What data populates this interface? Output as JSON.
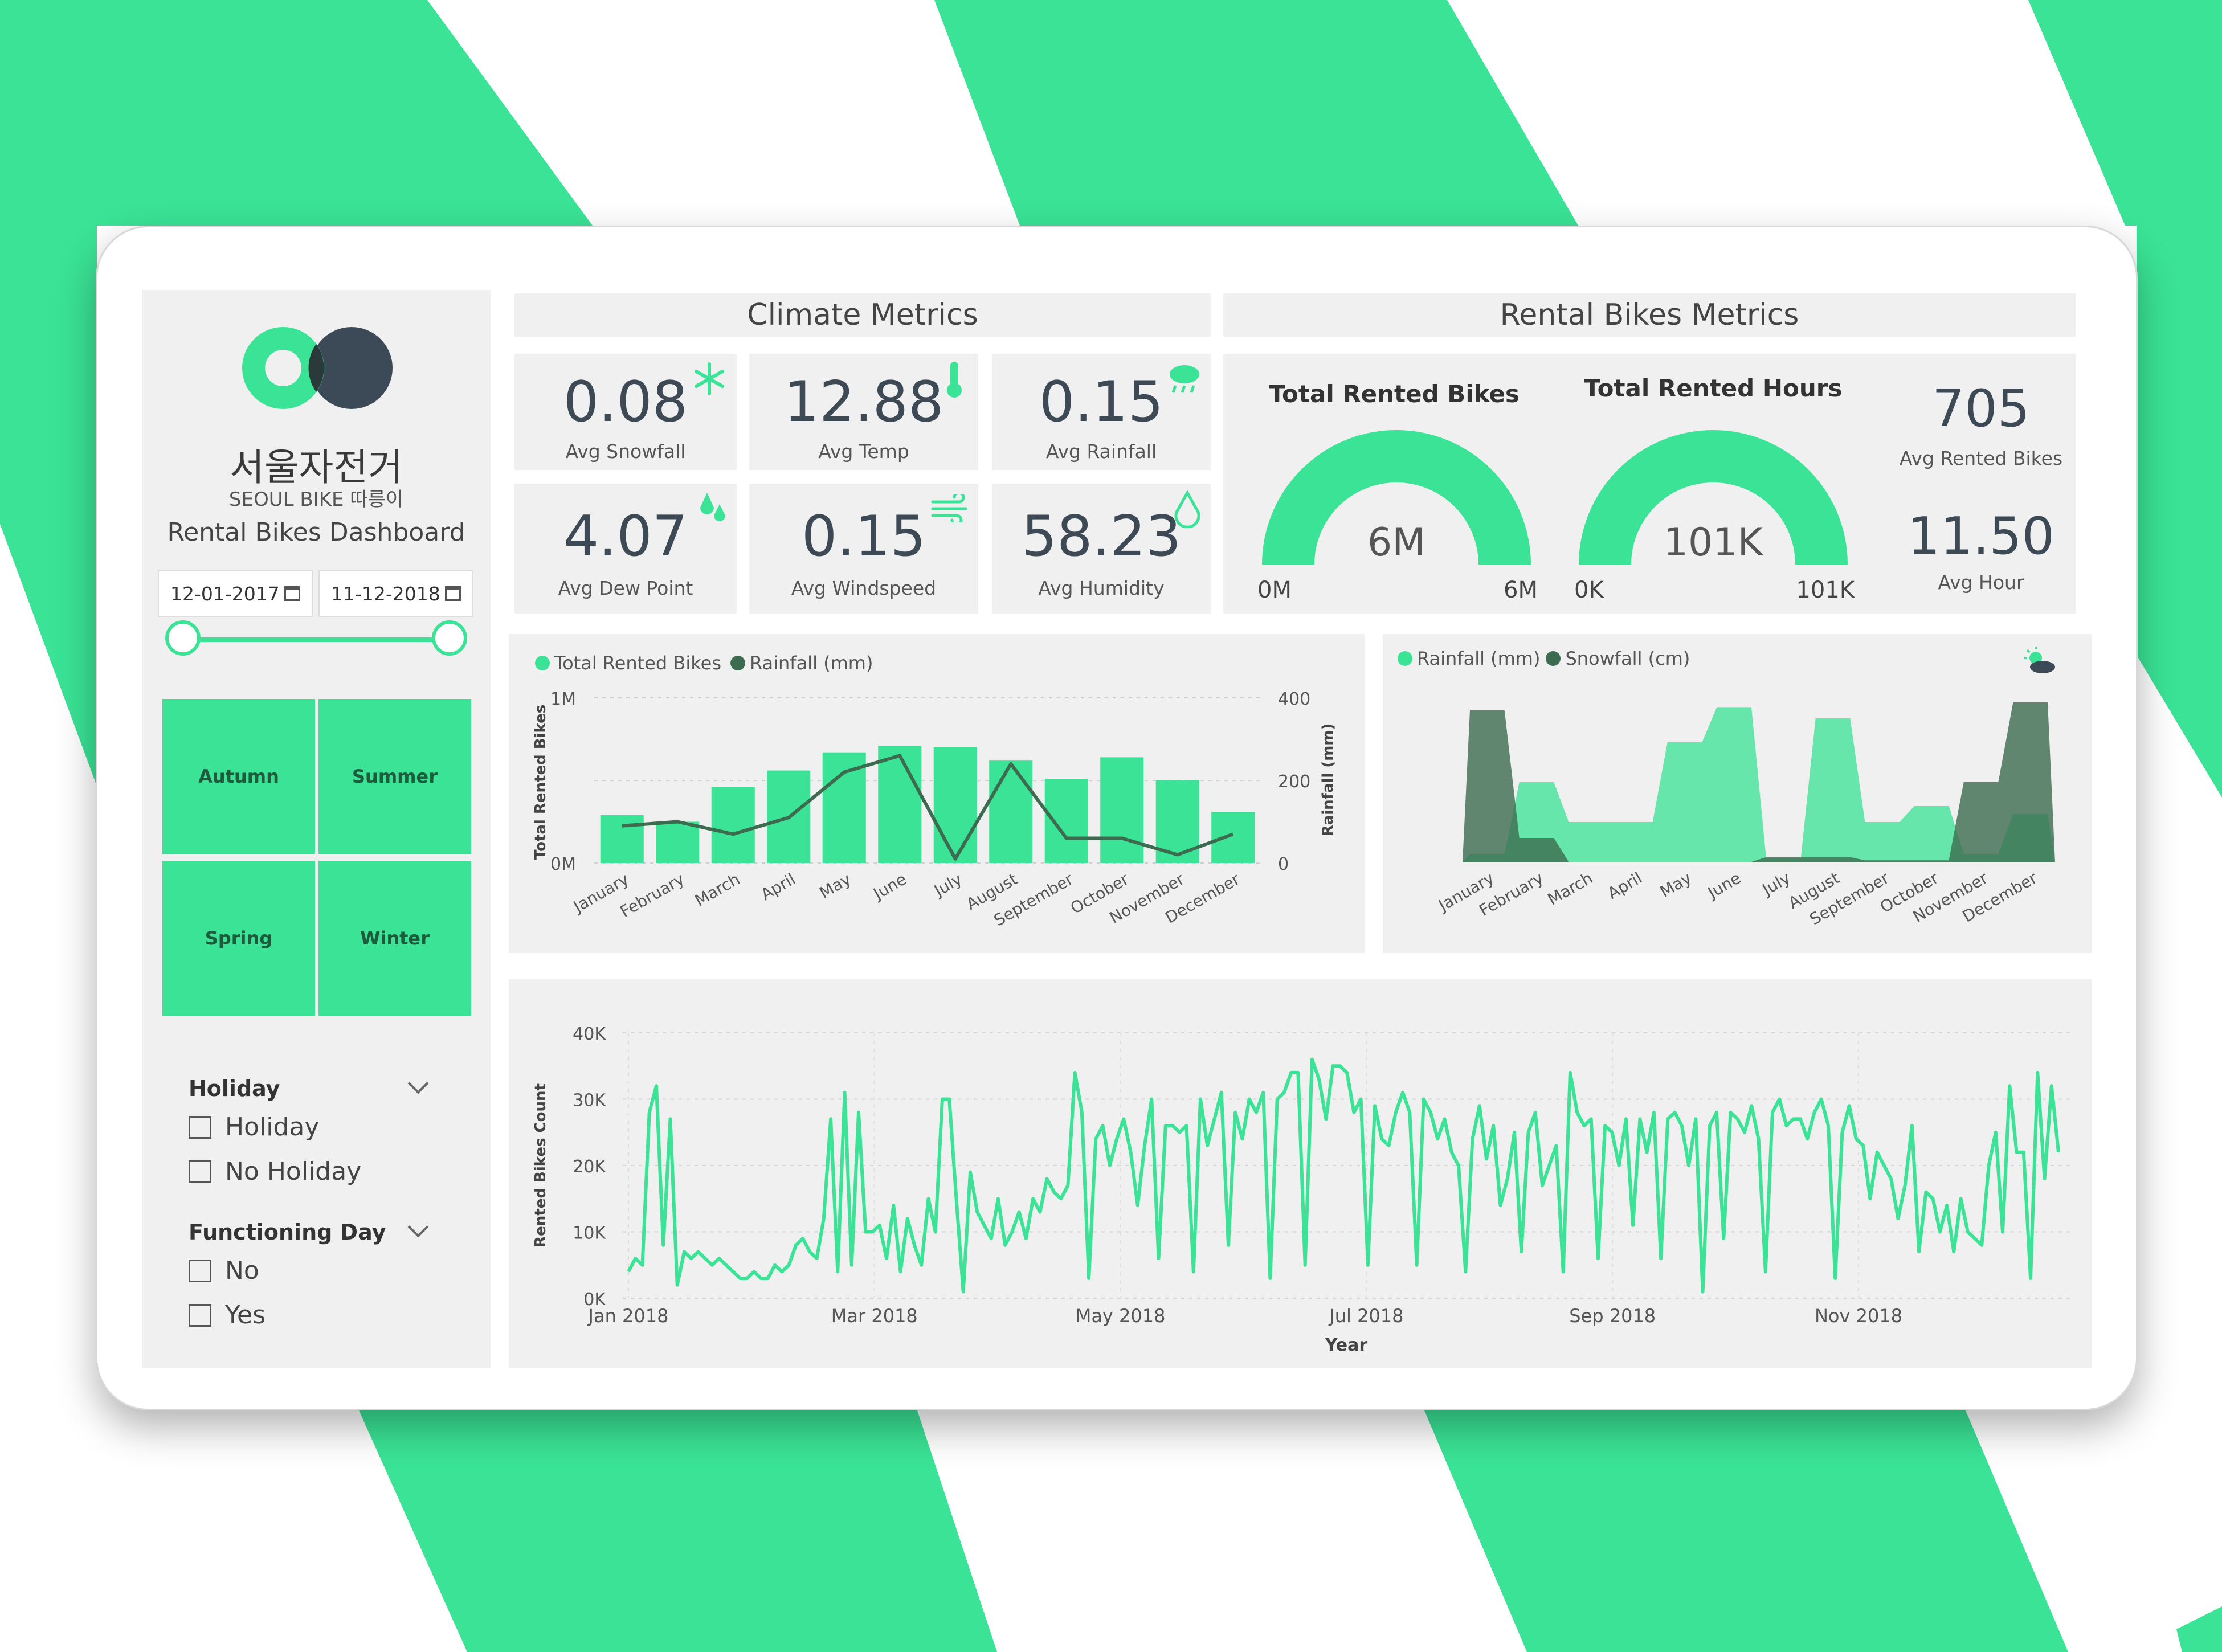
{
  "colors": {
    "accent": "#3ae396",
    "dark": "#3d5a4a",
    "panel": "#f0f0f0",
    "logo_dark": "#3c4a58"
  },
  "sidebar": {
    "korean_name": "서울자전거",
    "sub_name": "SEOUL BIKE 따릉이",
    "dashboard_title": "Rental Bikes Dashboard",
    "date_start": "12-01-2017",
    "date_end": "11-12-2018",
    "date_range_fraction": [
      0,
      1
    ],
    "seasons": [
      "Autumn",
      "Summer",
      "Spring",
      "Winter"
    ],
    "holiday": {
      "title": "Holiday",
      "options": [
        "Holiday",
        "No Holiday"
      ]
    },
    "functioning": {
      "title": "Functioning Day",
      "options": [
        "No",
        "Yes"
      ]
    }
  },
  "climate": {
    "title": "Climate Metrics",
    "kpis": [
      {
        "value": "0.08",
        "label": "Avg Snowfall",
        "icon": "snowflake-icon"
      },
      {
        "value": "12.88",
        "label": "Avg Temp",
        "icon": "thermometer-icon"
      },
      {
        "value": "0.15",
        "label": "Avg Rainfall",
        "icon": "rain-cloud-icon"
      },
      {
        "value": "4.07",
        "label": "Avg Dew Point",
        "icon": "dew-drops-icon"
      },
      {
        "value": "0.15",
        "label": "Avg Windspeed",
        "icon": "wind-icon"
      },
      {
        "value": "58.23",
        "label": "Avg Humidity",
        "icon": "humidity-drop-icon"
      }
    ]
  },
  "rental": {
    "title": "Rental Bikes Metrics",
    "gauges": [
      {
        "title": "Total Rented Bikes",
        "value": "6M",
        "min": "0M",
        "max": "6M",
        "fill": 1.0
      },
      {
        "title": "Total Rented Hours",
        "value": "101K",
        "min": "0K",
        "max": "101K",
        "fill": 1.0
      }
    ],
    "kpis": [
      {
        "value": "705",
        "label": "Avg Rented Bikes"
      },
      {
        "value": "11.50",
        "label": "Avg Hour"
      }
    ]
  },
  "chart_data": [
    {
      "type": "bar",
      "legend": [
        "Total Rented Bikes",
        "Rainfall (mm)"
      ],
      "categories": [
        "January",
        "February",
        "March",
        "April",
        "May",
        "June",
        "July",
        "August",
        "September",
        "October",
        "November",
        "December"
      ],
      "series": [
        {
          "name": "Total Rented Bikes",
          "type": "bar",
          "values": [
            290000,
            250000,
            460000,
            560000,
            670000,
            710000,
            700000,
            620000,
            510000,
            640000,
            500000,
            310000
          ]
        },
        {
          "name": "Rainfall (mm)",
          "type": "line",
          "values": [
            90,
            100,
            70,
            110,
            220,
            260,
            10,
            240,
            60,
            60,
            20,
            70
          ]
        }
      ],
      "ylabel": "Total Rented Bikes",
      "y2label": "Rainfall (mm)",
      "yticks": [
        "0M",
        "1M"
      ],
      "y2ticks": [
        "0",
        "200",
        "400"
      ],
      "ylim": [
        0,
        1000000
      ],
      "y2lim": [
        0,
        400
      ]
    },
    {
      "type": "area",
      "legend": [
        "Rainfall (mm)",
        "Snowfall (cm)"
      ],
      "icon": "weather-sun-cloud-icon",
      "categories": [
        "January",
        "February",
        "March",
        "April",
        "May",
        "June",
        "July",
        "August",
        "September",
        "October",
        "November",
        "December"
      ],
      "series": [
        {
          "name": "Rainfall (mm)",
          "values": [
            0.05,
            0.5,
            0.25,
            0.25,
            0.75,
            0.97,
            0.02,
            0.9,
            0.25,
            0.35,
            0.05,
            0.3
          ]
        },
        {
          "name": "Snowfall (cm)",
          "values": [
            0.95,
            0.15,
            0.0,
            0.0,
            0.0,
            0.0,
            0.03,
            0.03,
            0.01,
            0.01,
            0.5,
            1.0
          ]
        }
      ]
    },
    {
      "type": "line",
      "x_ticks": [
        "Jan 2018",
        "Mar 2018",
        "May 2018",
        "Jul 2018",
        "Sep 2018",
        "Nov 2018"
      ],
      "y_ticks": [
        "0K",
        "10K",
        "20K",
        "30K",
        "40K"
      ],
      "xlabel": "Year",
      "ylabel": "Rented Bikes Count",
      "ylim": [
        0,
        40000
      ],
      "series": [
        {
          "name": "Rented Bikes Count",
          "values": [
            4000,
            6000,
            5000,
            28000,
            32000,
            8000,
            27000,
            2000,
            7000,
            6000,
            7000,
            6000,
            5000,
            6000,
            5000,
            4000,
            3000,
            3000,
            4000,
            3000,
            3000,
            5000,
            4000,
            5000,
            8000,
            9000,
            7000,
            6000,
            12000,
            27000,
            4000,
            31000,
            5000,
            28000,
            10000,
            10000,
            11000,
            6000,
            14000,
            4000,
            12000,
            8000,
            5000,
            15000,
            10000,
            30000,
            30000,
            15000,
            1000,
            19000,
            13000,
            11000,
            9000,
            15000,
            8000,
            10000,
            13000,
            9000,
            15000,
            13000,
            18000,
            16000,
            15000,
            17000,
            34000,
            28000,
            3000,
            24000,
            26000,
            20000,
            24000,
            27000,
            22000,
            14000,
            23000,
            30000,
            6000,
            26000,
            26000,
            25000,
            26000,
            4000,
            30000,
            23000,
            27000,
            31000,
            8000,
            28000,
            24000,
            30000,
            28000,
            31000,
            3000,
            30000,
            31000,
            34000,
            34000,
            5000,
            36000,
            33000,
            27000,
            35000,
            35000,
            34000,
            28000,
            30000,
            5000,
            29000,
            24000,
            23000,
            28000,
            31000,
            28000,
            5000,
            30000,
            28000,
            24000,
            27000,
            22000,
            20000,
            4000,
            24000,
            29000,
            21000,
            26000,
            14000,
            18000,
            25000,
            7000,
            25000,
            28000,
            17000,
            20000,
            23000,
            4000,
            34000,
            28000,
            26000,
            27000,
            6000,
            26000,
            25000,
            20000,
            27000,
            11000,
            27000,
            22000,
            28000,
            6000,
            27000,
            28000,
            26000,
            20000,
            27000,
            1000,
            26000,
            28000,
            9000,
            28000,
            27000,
            25000,
            29000,
            24000,
            4000,
            28000,
            30000,
            26000,
            27000,
            27000,
            24000,
            28000,
            30000,
            26000,
            3000,
            25000,
            29000,
            24000,
            23000,
            15000,
            22000,
            20000,
            18000,
            12000,
            17000,
            26000,
            7000,
            16000,
            15000,
            10000,
            14000,
            7000,
            15000,
            10000,
            9000,
            8000,
            20000,
            25000,
            10000,
            32000,
            22000,
            22000,
            3000,
            34000,
            18000,
            32000,
            22000
          ]
        }
      ]
    }
  ]
}
